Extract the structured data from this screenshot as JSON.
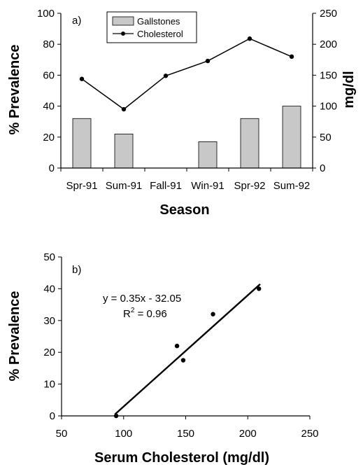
{
  "chart_data": [
    {
      "type": "bar",
      "panel_label": "a)",
      "categories": [
        "Spr-91",
        "Sum-91",
        "Fall-91",
        "Win-91",
        "Spr-92",
        "Sum-92"
      ],
      "series": [
        {
          "name": "Gallstones",
          "type": "bar",
          "axis": "left",
          "values": [
            32,
            22,
            0,
            17,
            32,
            40
          ]
        },
        {
          "name": "Cholesterol",
          "type": "line",
          "axis": "right",
          "values": [
            144,
            95,
            149,
            173,
            209,
            180
          ]
        }
      ],
      "xlabel": "Season",
      "ylabel": "% Prevalence",
      "ylabel_right": "mg/dl",
      "ylim": [
        0,
        100
      ],
      "ylim_right": [
        0,
        250
      ],
      "yticks": [
        "0",
        "20",
        "40",
        "60",
        "80",
        "100"
      ],
      "yticks_right": [
        "0",
        "50",
        "100",
        "150",
        "200",
        "250"
      ],
      "legend": "top-center",
      "grid": false,
      "colors": {
        "bar": "#c8c8c8",
        "line": "#000000"
      }
    },
    {
      "type": "scatter",
      "panel_label": "b)",
      "points": [
        {
          "x": 94,
          "y": 0
        },
        {
          "x": 143,
          "y": 22
        },
        {
          "x": 148,
          "y": 17.5
        },
        {
          "x": 172,
          "y": 32
        },
        {
          "x": 209,
          "y": 40
        }
      ],
      "fit_line": {
        "slope": 0.35,
        "intercept": -32.05,
        "x_range": [
          93,
          210
        ]
      },
      "equation": "y = 0.35x - 32.05",
      "r2_prefix": "R",
      "r2_sup": "2",
      "r2_suffix": " = 0.96",
      "xlabel": "Serum Cholesterol (mg/dl)",
      "ylabel": "% Prevalence",
      "xlim": [
        50,
        250
      ],
      "ylim": [
        0,
        50
      ],
      "xticks": [
        "50",
        "100",
        "150",
        "200",
        "250"
      ],
      "yticks": [
        "0",
        "10",
        "20",
        "30",
        "40",
        "50"
      ],
      "grid": false
    }
  ]
}
